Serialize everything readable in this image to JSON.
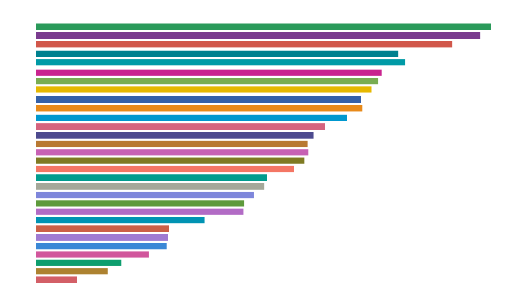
{
  "chart_data": {
    "type": "bar",
    "orientation": "horizontal",
    "xlim": [
      0,
      100
    ],
    "grid": false,
    "legend": "none",
    "bars": [
      {
        "value": 100.0,
        "color": "#2a9a5a"
      },
      {
        "value": 97.6,
        "color": "#7a3b8f"
      },
      {
        "value": 91.4,
        "color": "#d1574a"
      },
      {
        "value": 79.6,
        "color": "#00818f"
      },
      {
        "value": 81.1,
        "color": "#009aa6"
      },
      {
        "value": 75.9,
        "color": "#c9248f"
      },
      {
        "value": 75.2,
        "color": "#79ad52"
      },
      {
        "value": 73.6,
        "color": "#e6b800"
      },
      {
        "value": 71.3,
        "color": "#3460a8"
      },
      {
        "value": 71.6,
        "color": "#e88a1a"
      },
      {
        "value": 68.3,
        "color": "#0098cf"
      },
      {
        "value": 63.4,
        "color": "#d5647f"
      },
      {
        "value": 60.9,
        "color": "#4d4a8f"
      },
      {
        "value": 59.7,
        "color": "#b87932"
      },
      {
        "value": 59.8,
        "color": "#c761b4"
      },
      {
        "value": 58.9,
        "color": "#7f7a22"
      },
      {
        "value": 56.6,
        "color": "#f47664"
      },
      {
        "value": 50.8,
        "color": "#009c8e"
      },
      {
        "value": 50.1,
        "color": "#a5a89a"
      },
      {
        "value": 47.8,
        "color": "#7e86db"
      },
      {
        "value": 45.7,
        "color": "#5e9a3c"
      },
      {
        "value": 45.6,
        "color": "#b26bc5"
      },
      {
        "value": 37.0,
        "color": "#0093b3"
      },
      {
        "value": 29.2,
        "color": "#cc5f46"
      },
      {
        "value": 29.0,
        "color": "#a07ad2"
      },
      {
        "value": 28.7,
        "color": "#3b88d6"
      },
      {
        "value": 24.8,
        "color": "#d1569c"
      },
      {
        "value": 18.8,
        "color": "#0e9e6e"
      },
      {
        "value": 15.7,
        "color": "#ad8230"
      },
      {
        "value": 9.0,
        "color": "#d35f67"
      }
    ]
  }
}
